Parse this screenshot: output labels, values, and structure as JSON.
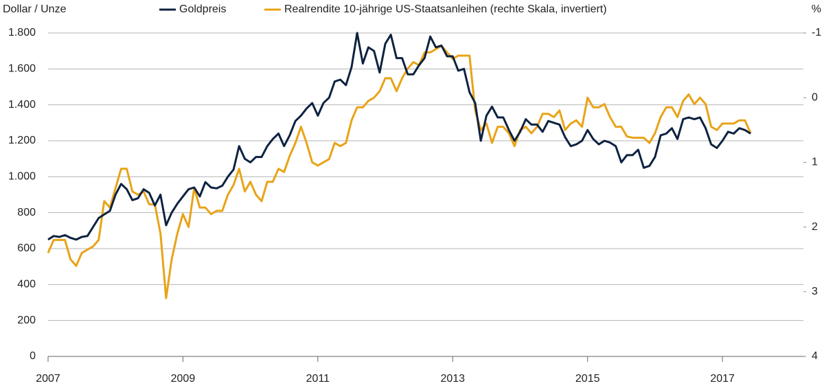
{
  "chart_data": {
    "type": "line",
    "y_label": "Dollar / Unze",
    "y2_label": "%",
    "x": [
      2007,
      2007.083,
      2007.167,
      2007.25,
      2007.333,
      2007.417,
      2007.5,
      2007.583,
      2007.667,
      2007.75,
      2007.833,
      2007.917,
      2008,
      2008.083,
      2008.167,
      2008.25,
      2008.333,
      2008.417,
      2008.5,
      2008.583,
      2008.667,
      2008.75,
      2008.833,
      2008.917,
      2009,
      2009.083,
      2009.167,
      2009.25,
      2009.333,
      2009.417,
      2009.5,
      2009.583,
      2009.667,
      2009.75,
      2009.833,
      2009.917,
      2010,
      2010.083,
      2010.167,
      2010.25,
      2010.333,
      2010.417,
      2010.5,
      2010.583,
      2010.667,
      2010.75,
      2010.833,
      2010.917,
      2011,
      2011.083,
      2011.167,
      2011.25,
      2011.333,
      2011.417,
      2011.5,
      2011.583,
      2011.667,
      2011.75,
      2011.833,
      2011.917,
      2012,
      2012.083,
      2012.167,
      2012.25,
      2012.333,
      2012.417,
      2012.5,
      2012.583,
      2012.667,
      2012.75,
      2012.833,
      2012.917,
      2013,
      2013.083,
      2013.167,
      2013.25,
      2013.333,
      2013.417,
      2013.5,
      2013.583,
      2013.667,
      2013.75,
      2013.833,
      2013.917,
      2014,
      2014.083,
      2014.167,
      2014.25,
      2014.333,
      2014.417,
      2014.5,
      2014.583,
      2014.667,
      2014.75,
      2014.833,
      2014.917,
      2015,
      2015.083,
      2015.167,
      2015.25,
      2015.333,
      2015.417,
      2015.5,
      2015.583,
      2015.667,
      2015.75,
      2015.833,
      2015.917,
      2016,
      2016.083,
      2016.167,
      2016.25,
      2016.333,
      2016.417,
      2016.5,
      2016.583,
      2016.667,
      2016.75,
      2016.833,
      2016.917,
      2017,
      2017.083,
      2017.167,
      2017.25,
      2017.333,
      2017.417
    ],
    "series": [
      {
        "name": "Goldpreis",
        "color": "#0d2240",
        "values": [
          650,
          670,
          665,
          675,
          660,
          650,
          665,
          670,
          720,
          770,
          790,
          810,
          900,
          960,
          930,
          870,
          880,
          930,
          910,
          840,
          900,
          730,
          800,
          850,
          890,
          930,
          940,
          890,
          970,
          940,
          935,
          950,
          1000,
          1040,
          1170,
          1100,
          1080,
          1110,
          1110,
          1170,
          1210,
          1240,
          1170,
          1230,
          1310,
          1340,
          1380,
          1410,
          1340,
          1410,
          1440,
          1530,
          1540,
          1510,
          1610,
          1800,
          1630,
          1720,
          1700,
          1580,
          1740,
          1790,
          1660,
          1660,
          1570,
          1570,
          1620,
          1660,
          1780,
          1720,
          1730,
          1670,
          1670,
          1590,
          1600,
          1470,
          1410,
          1200,
          1340,
          1390,
          1330,
          1330,
          1260,
          1200,
          1250,
          1320,
          1290,
          1290,
          1250,
          1310,
          1300,
          1290,
          1220,
          1170,
          1180,
          1200,
          1260,
          1210,
          1180,
          1200,
          1190,
          1170,
          1080,
          1120,
          1120,
          1150,
          1050,
          1060,
          1110,
          1230,
          1240,
          1270,
          1210,
          1320,
          1330,
          1320,
          1330,
          1270,
          1180,
          1160,
          1200,
          1250,
          1240,
          1270,
          1260,
          1240
        ]
      },
      {
        "name": "Realrendite 10-jährige US-Staatsanleihen (rechte Skala, invertiert)",
        "color": "#e8a317",
        "axis": "y2",
        "values": [
          2.4,
          2.2,
          2.2,
          2.2,
          2.5,
          2.6,
          2.4,
          2.35,
          2.3,
          2.2,
          1.6,
          1.7,
          1.4,
          1.1,
          1.1,
          1.45,
          1.5,
          1.45,
          1.65,
          1.65,
          2.1,
          3.1,
          2.5,
          2.1,
          1.8,
          2.0,
          1.4,
          1.7,
          1.7,
          1.8,
          1.75,
          1.75,
          1.5,
          1.35,
          1.1,
          1.45,
          1.3,
          1.5,
          1.6,
          1.3,
          1.3,
          1.1,
          1.15,
          0.9,
          0.7,
          0.45,
          0.7,
          1.0,
          1.05,
          1.0,
          0.95,
          0.7,
          0.75,
          0.7,
          0.35,
          0.15,
          0.15,
          0.05,
          0.0,
          -0.1,
          -0.3,
          -0.3,
          -0.1,
          -0.3,
          -0.45,
          -0.55,
          -0.5,
          -0.7,
          -0.7,
          -0.75,
          -0.8,
          -0.7,
          -0.6,
          -0.65,
          -0.65,
          -0.65,
          0.2,
          0.5,
          0.4,
          0.7,
          0.45,
          0.45,
          0.55,
          0.75,
          0.5,
          0.45,
          0.55,
          0.45,
          0.25,
          0.25,
          0.3,
          0.2,
          0.5,
          0.4,
          0.35,
          0.45,
          0.0,
          0.15,
          0.15,
          0.1,
          0.3,
          0.45,
          0.45,
          0.6,
          0.62,
          0.62,
          0.62,
          0.7,
          0.55,
          0.3,
          0.15,
          0.15,
          0.3,
          0.05,
          -0.05,
          0.1,
          0.0,
          0.1,
          0.45,
          0.5,
          0.4,
          0.4,
          0.4,
          0.35,
          0.35,
          0.55
        ]
      }
    ],
    "xlim": [
      2007,
      2018.2
    ],
    "xticks": [
      2007,
      2009,
      2011,
      2013,
      2015,
      2017
    ],
    "ylim": [
      0,
      1800
    ],
    "yticks": [
      0,
      200,
      400,
      600,
      800,
      {
        "value": 1000,
        "label": "1.000"
      },
      {
        "value": 1200,
        "label": "1.200"
      },
      {
        "value": 1400,
        "label": "1.400"
      },
      {
        "value": 1600,
        "label": "1.600"
      },
      {
        "value": 1800,
        "label": "1.800"
      }
    ],
    "y2lim": [
      4,
      -1
    ],
    "y2ticks": [
      -1,
      0,
      1,
      2,
      3,
      4
    ],
    "grid": true,
    "legend": "top"
  }
}
